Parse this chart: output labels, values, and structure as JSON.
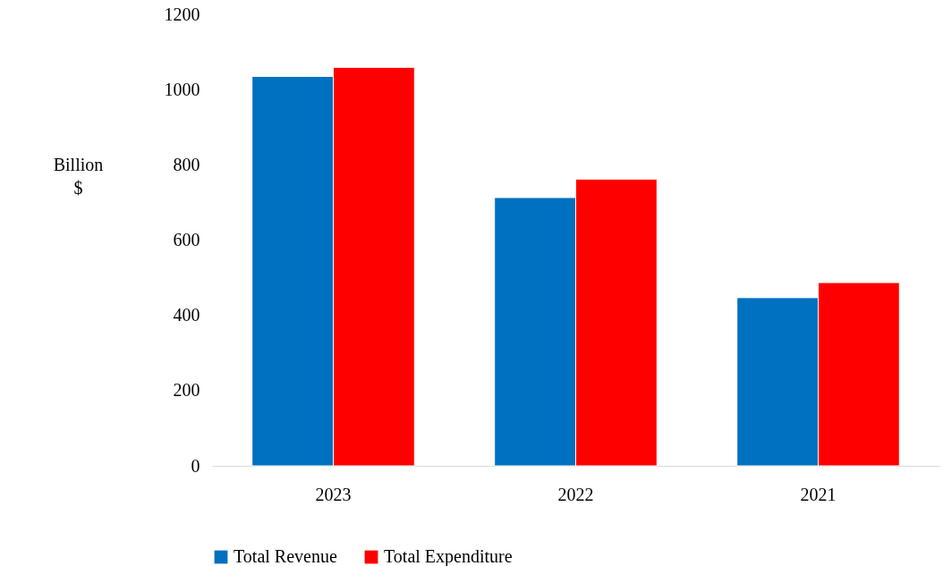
{
  "chart_data": {
    "type": "bar",
    "ylabel": "Billion $",
    "categories": [
      "2023",
      "2022",
      "2021"
    ],
    "series": [
      {
        "name": "Total Revenue",
        "color": "#0070c0",
        "values": [
          1035,
          713,
          447
        ]
      },
      {
        "name": "Total Expenditure",
        "color": "#ff0000",
        "values": [
          1059,
          762,
          487
        ]
      }
    ],
    "ylim": [
      0,
      1200
    ],
    "yticks": [
      0,
      200,
      400,
      600,
      800,
      1000,
      1200
    ],
    "grid": false,
    "legend": "bottom"
  }
}
